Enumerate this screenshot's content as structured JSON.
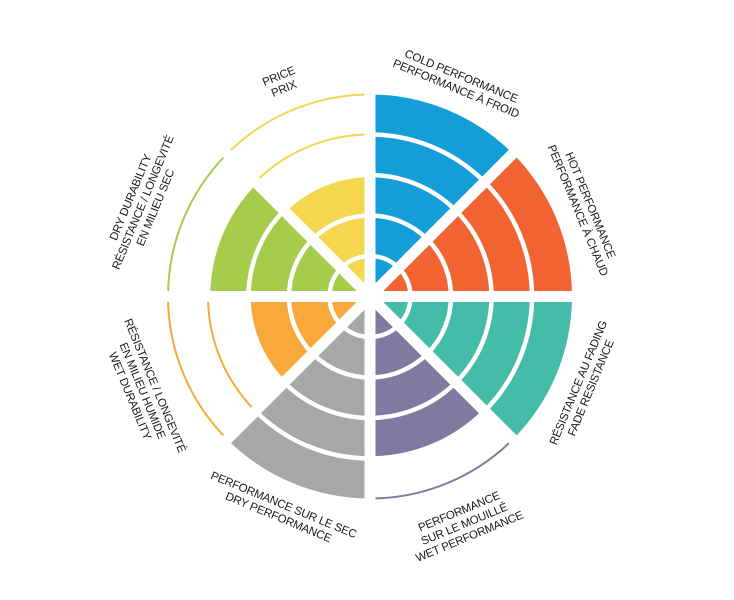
{
  "chart_data": {
    "type": "bar",
    "polar": true,
    "scale_max": 5,
    "levels": [
      1,
      2,
      3,
      4,
      5
    ],
    "grid": false,
    "legend": "none",
    "categories": [
      {
        "lines": [
          "COLD PERFORMANCE",
          "PERFORMANCE À FROID"
        ],
        "value": 5,
        "color": "#139ed8"
      },
      {
        "lines": [
          "HOT PERFORMANCE",
          "PERFORMANCE À CHAUD"
        ],
        "value": 5,
        "color": "#f26532"
      },
      {
        "lines": [
          "RÉSISTANCE AU FADING",
          "FADE RESISTANCE"
        ],
        "value": 5,
        "color": "#45bca8"
      },
      {
        "lines": [
          "PERFORMANCE",
          "SUR LE MOUILLÉ",
          "WET PERFORMANCE"
        ],
        "value": 4,
        "color": "#8079a0"
      },
      {
        "lines": [
          "PERFORMANCE SUR LE SEC",
          "DRY PERFORMANCE"
        ],
        "value": 5,
        "color": "#a6a7a9"
      },
      {
        "lines": [
          "RÉSISTANCE / LONGEVITÉ",
          "EN MILIEU HUMIDE",
          "WET DURABILITY"
        ],
        "value": 3,
        "color": "#f9a93b"
      },
      {
        "lines": [
          "DRY DURABILITY",
          "RÉSISTANCE / LONGEVITÉ",
          "EN MILIEU SEC"
        ],
        "value": 4,
        "color": "#a5cc4b"
      },
      {
        "lines": [
          "PRICE",
          "PRIX"
        ],
        "value": 3,
        "color": "#f4d74f"
      }
    ]
  }
}
